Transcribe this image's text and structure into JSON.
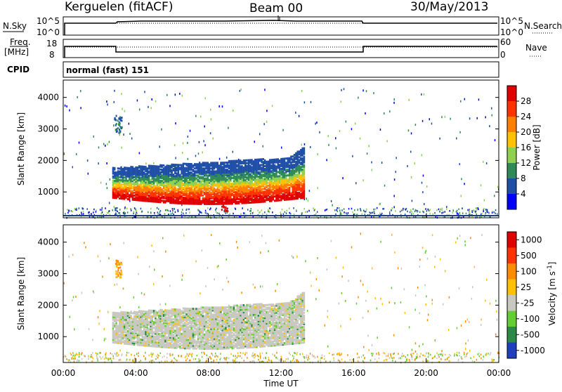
{
  "header": {
    "station": "Kerguelen (fitACF)",
    "beam": "Beam 00",
    "date": "30/May/2013"
  },
  "noise_panel": {
    "left_label": "N.Sky",
    "right_label": "N.Search",
    "left_ticks": [
      "10^5",
      "10^0"
    ],
    "right_ticks": [
      "10^5",
      "10^0"
    ]
  },
  "freq_panel": {
    "left_label_top": "Freq.",
    "left_label_bottom": "[MHz]",
    "right_label": "Nave",
    "left_ticks": [
      "18",
      "8"
    ],
    "right_ticks": [
      "60",
      "0"
    ]
  },
  "cpid": {
    "label": "CPID",
    "value": "normal (fast) 151"
  },
  "chart_data": [
    {
      "type": "heatmap",
      "name": "power",
      "ylabel": "Slant Range [km]",
      "xlabel": "",
      "y_ticks": [
        "4000",
        "3000",
        "2000",
        "1000"
      ],
      "ylim": [
        180,
        4550
      ],
      "colorbar": {
        "label": "Power [dB]",
        "ticks": [
          "28",
          "24",
          "20",
          "16",
          "12",
          "8",
          "4"
        ],
        "colors": [
          "#0000ff",
          "#1f4ea6",
          "#2e8b57",
          "#8fd14f",
          "#ffc107",
          "#ff7f00",
          "#ff3300",
          "#e00000"
        ]
      }
    },
    {
      "type": "heatmap",
      "name": "velocity",
      "ylabel": "Slant Range [km]",
      "xlabel": "Time UT",
      "y_ticks": [
        "4000",
        "3000",
        "2000",
        "1000"
      ],
      "ylim": [
        180,
        4550
      ],
      "colorbar": {
        "label": "Velocity [m s",
        "label_sup": "-1",
        "label_end": "]",
        "ticks": [
          "1000",
          "500",
          "100",
          "25",
          "-25",
          "-100",
          "-500",
          "-1000"
        ],
        "colors": [
          "#1f3fbf",
          "#2b8a4a",
          "#66cc33",
          "#c8c8c0",
          "#ffc107",
          "#ff8c00",
          "#ff3300",
          "#e00000"
        ]
      },
      "x_ticks": [
        "00:00",
        "04:00",
        "08:00",
        "12:00",
        "16:00",
        "20:00",
        "00:00"
      ]
    }
  ]
}
